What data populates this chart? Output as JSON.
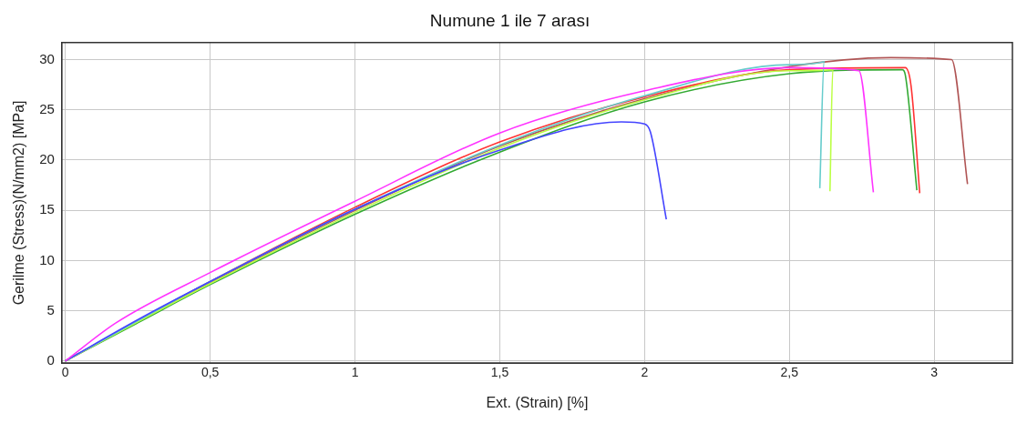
{
  "chart_data": {
    "type": "line",
    "title": "Numune 1 ile 7 arası",
    "xlabel": "Ext. (Strain) [%]",
    "ylabel": "Gerilme (Stress)(N/mm2) [MPa]",
    "xlim": [
      -0.012,
      3.27
    ],
    "ylim": [
      -0.2,
      31.7
    ],
    "xticks": [
      0,
      {
        "value": 0.5,
        "label": "0,5"
      },
      1,
      {
        "value": 1.5,
        "label": "1,5"
      },
      2,
      {
        "value": 2.5,
        "label": "2,5"
      },
      3
    ],
    "yticks": [
      0,
      5,
      10,
      15,
      20,
      25,
      30
    ],
    "grid": true,
    "legend": false,
    "marker": "none",
    "line_style": "solid",
    "series": [
      {
        "color": "#ff33ff",
        "x": [
          0,
          0.175,
          0.5,
          1,
          1.5,
          2,
          2.5,
          2.74,
          2.79
        ],
        "values": [
          0,
          3.8,
          8.8,
          15.9,
          22.7,
          26.9,
          29.2,
          28.9,
          16.8
        ]
      },
      {
        "color": "#4444ff",
        "x": [
          0,
          0.25,
          0.5,
          1,
          1.5,
          1.92,
          2.0,
          2.02,
          2.075
        ],
        "values": [
          0,
          4.1,
          7.9,
          15.1,
          21.0,
          23.8,
          23.6,
          22.8,
          14.1
        ]
      },
      {
        "color": "#66cccc",
        "x": [
          0,
          0.25,
          0.5,
          1,
          1.5,
          2,
          2.5,
          2.62,
          2.605
        ],
        "values": [
          0,
          4.0,
          7.9,
          15.1,
          21.5,
          26.4,
          29.5,
          29.8,
          17.2
        ]
      },
      {
        "color": "#bbff44",
        "x": [
          0,
          0.25,
          0.5,
          1,
          1.5,
          2,
          2.5,
          2.65,
          2.64
        ],
        "values": [
          0,
          3.9,
          7.7,
          14.8,
          21.2,
          26.0,
          28.9,
          29.0,
          16.9
        ]
      },
      {
        "color": "#ff3333",
        "x": [
          0,
          0.25,
          0.5,
          1,
          1.5,
          2,
          2.5,
          2.9,
          2.92,
          2.95
        ],
        "values": [
          0,
          4.0,
          7.9,
          15.3,
          21.8,
          26.3,
          29.0,
          29.2,
          27.4,
          16.7
        ]
      },
      {
        "color": "#33aa33",
        "x": [
          0,
          0.25,
          0.5,
          1,
          1.5,
          2,
          2.5,
          2.89,
          2.9,
          2.94
        ],
        "values": [
          0,
          3.8,
          7.6,
          14.6,
          20.8,
          25.8,
          28.6,
          29.0,
          28.5,
          17.0
        ]
      },
      {
        "color": "#b05555",
        "x": [
          0,
          0.25,
          0.5,
          1,
          1.5,
          2,
          2.5,
          2.85,
          3.06,
          3.115
        ],
        "values": [
          0,
          3.9,
          7.8,
          15.0,
          21.4,
          26.1,
          29.3,
          30.2,
          30.0,
          17.6
        ]
      }
    ]
  }
}
